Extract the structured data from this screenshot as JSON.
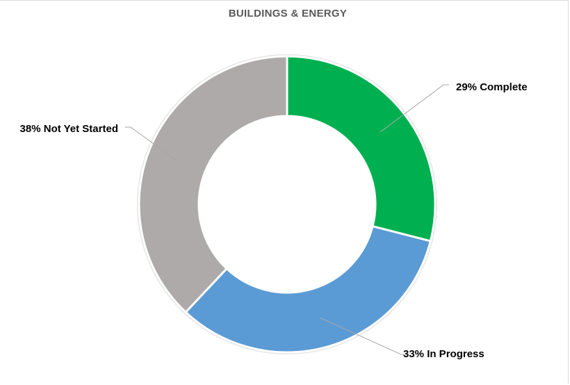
{
  "chart_data": {
    "type": "pie",
    "title": "BUILDINGS & ENERGY",
    "categories": [
      "Complete",
      "In Progress",
      "Not Yet Started"
    ],
    "values": [
      29,
      33,
      38
    ],
    "labels": [
      "29% Complete",
      "33% In Progress",
      "38% Not Yet Started"
    ],
    "colors": [
      "#00b050",
      "#5b9bd5",
      "#aeaaaa"
    ],
    "donut": true,
    "legend": "none"
  }
}
